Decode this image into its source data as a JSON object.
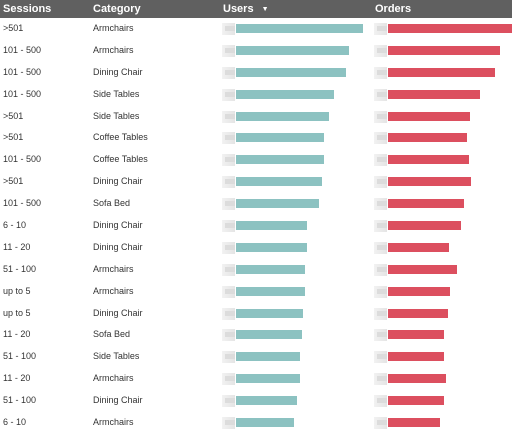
{
  "header": {
    "sessions": "Sessions",
    "category": "Category",
    "users": "Users",
    "orders": "Orders",
    "sort_icon": "▼"
  },
  "colors": {
    "users": "#8cc2c1",
    "orders": "#dc4f5f",
    "header_bg": "#606060"
  },
  "chart_data": {
    "type": "table",
    "columns": [
      "Sessions",
      "Category",
      "Users",
      "Orders"
    ],
    "sort": {
      "column": "Users",
      "direction": "descending"
    },
    "max": {
      "users": 1.0,
      "orders": 1.0
    },
    "rows": [
      {
        "sessions": ">501",
        "category": "Armchairs",
        "users": 1.0,
        "orders": 1.0
      },
      {
        "sessions": "101 - 500",
        "category": "Armchairs",
        "users": 0.89,
        "orders": 0.9
      },
      {
        "sessions": "101 - 500",
        "category": "Dining Chair",
        "users": 0.87,
        "orders": 0.86
      },
      {
        "sessions": "101 - 500",
        "category": "Side Tables",
        "users": 0.77,
        "orders": 0.74
      },
      {
        "sessions": ">501",
        "category": "Side Tables",
        "users": 0.73,
        "orders": 0.66
      },
      {
        "sessions": ">501",
        "category": "Coffee Tables",
        "users": 0.69,
        "orders": 0.64
      },
      {
        "sessions": "101 - 500",
        "category": "Coffee Tables",
        "users": 0.69,
        "orders": 0.65
      },
      {
        "sessions": ">501",
        "category": "Dining Chair",
        "users": 0.68,
        "orders": 0.67
      },
      {
        "sessions": "101 - 500",
        "category": "Sofa Bed",
        "users": 0.65,
        "orders": 0.61
      },
      {
        "sessions": "6 - 10",
        "category": "Dining Chair",
        "users": 0.56,
        "orders": 0.59
      },
      {
        "sessions": "11 - 20",
        "category": "Dining Chair",
        "users": 0.56,
        "orders": 0.49
      },
      {
        "sessions": "51 - 100",
        "category": "Armchairs",
        "users": 0.54,
        "orders": 0.56
      },
      {
        "sessions": "up to 5",
        "category": "Armchairs",
        "users": 0.54,
        "orders": 0.5
      },
      {
        "sessions": "up to 5",
        "category": "Dining Chair",
        "users": 0.53,
        "orders": 0.48
      },
      {
        "sessions": "11 - 20",
        "category": "Sofa Bed",
        "users": 0.52,
        "orders": 0.45
      },
      {
        "sessions": "51 - 100",
        "category": "Side Tables",
        "users": 0.5,
        "orders": 0.45
      },
      {
        "sessions": "11 - 20",
        "category": "Armchairs",
        "users": 0.5,
        "orders": 0.47
      },
      {
        "sessions": "51 - 100",
        "category": "Dining Chair",
        "users": 0.48,
        "orders": 0.45
      },
      {
        "sessions": "6 - 10",
        "category": "Armchairs",
        "users": 0.46,
        "orders": 0.42
      }
    ]
  }
}
